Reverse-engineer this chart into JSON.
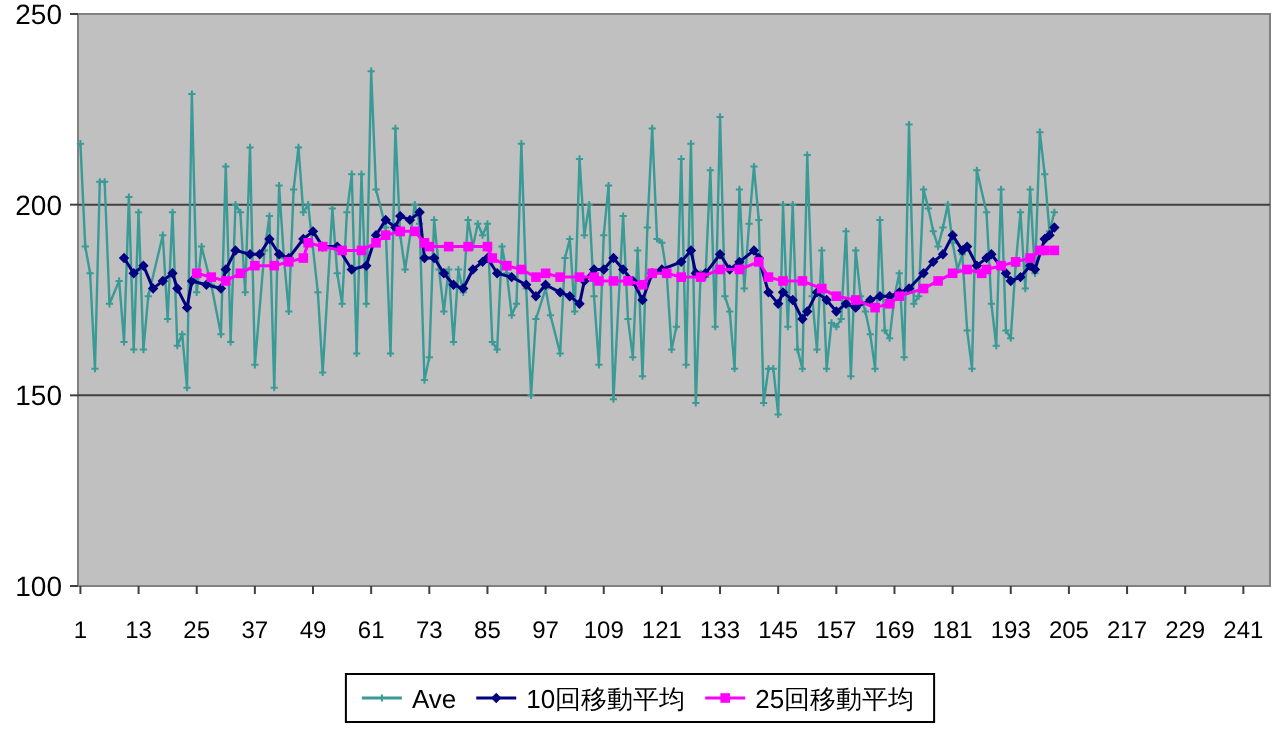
{
  "chart_data": {
    "type": "line",
    "xlim": [
      0.5,
      246.5
    ],
    "xticks": [
      1,
      13,
      25,
      37,
      49,
      61,
      73,
      85,
      97,
      109,
      121,
      133,
      145,
      157,
      169,
      181,
      193,
      205,
      217,
      229,
      241
    ],
    "ylim": [
      100,
      250
    ],
    "yticks": [
      100,
      150,
      200,
      250
    ],
    "grid": "y",
    "legend": "bottom",
    "series": [
      {
        "name": "Ave",
        "color": "#3a9a96",
        "marker": "cross",
        "x": [
          1,
          2,
          3,
          4,
          5,
          6,
          7,
          9,
          10,
          11,
          12,
          13,
          14,
          15,
          18,
          19,
          20,
          21,
          22,
          23,
          24,
          25,
          26,
          28,
          30,
          31,
          32,
          33,
          34,
          35,
          36,
          37,
          39,
          40,
          41,
          42,
          43,
          44,
          45,
          46,
          47,
          48,
          50,
          51,
          53,
          54,
          55,
          56,
          57,
          58,
          59,
          60,
          61,
          62,
          64,
          65,
          66,
          67,
          68,
          70,
          71,
          72,
          73,
          74,
          75,
          76,
          77,
          78,
          79,
          80,
          81,
          82,
          83,
          84,
          85,
          86,
          87,
          88,
          89,
          90,
          91,
          92,
          93,
          94,
          95,
          97,
          98,
          100,
          101,
          102,
          103,
          104,
          105,
          106,
          107,
          108,
          109,
          110,
          111,
          113,
          114,
          115,
          116,
          117,
          118,
          119,
          120,
          121,
          122,
          123,
          124,
          125,
          126,
          127,
          128,
          129,
          130,
          131,
          132,
          133,
          134,
          135,
          136,
          137,
          138,
          139,
          140,
          141,
          142,
          143,
          144,
          145,
          146,
          147,
          148,
          149,
          150,
          151,
          152,
          153,
          154,
          155,
          156,
          157,
          158,
          159,
          160,
          161,
          162,
          163,
          164,
          165,
          166,
          167,
          168,
          169,
          170,
          171,
          172,
          173,
          174,
          175,
          176,
          177,
          178,
          179,
          180,
          181,
          182,
          183,
          184,
          185,
          186,
          188,
          189,
          190,
          191,
          192,
          193,
          194,
          195,
          196,
          197,
          198,
          199,
          200,
          201,
          202
        ],
        "values": [
          216,
          189,
          182,
          157,
          206,
          206,
          174,
          180,
          164,
          202,
          162,
          198,
          162,
          176,
          192,
          170,
          198,
          163,
          166,
          152,
          229,
          177,
          189,
          179,
          166,
          210,
          164,
          200,
          198,
          177,
          215,
          158,
          188,
          197,
          152,
          205,
          186,
          172,
          204,
          215,
          198,
          200,
          177,
          156,
          199,
          182,
          174,
          198,
          208,
          161,
          208,
          174,
          235,
          204,
          194,
          161,
          220,
          192,
          183,
          200,
          195,
          154,
          160,
          196,
          183,
          172,
          183,
          164,
          183,
          177,
          196,
          189,
          195,
          192,
          195,
          164,
          162,
          189,
          182,
          171,
          174,
          216,
          178,
          150,
          170,
          178,
          171,
          161,
          186,
          191,
          172,
          212,
          192,
          200,
          176,
          158,
          192,
          205,
          149,
          197,
          170,
          160,
          188,
          155,
          194,
          220,
          191,
          190,
          182,
          162,
          168,
          212,
          158,
          216,
          148,
          182,
          181,
          209,
          168,
          223,
          176,
          172,
          157,
          204,
          178,
          195,
          210,
          196,
          148,
          157,
          157,
          145,
          200,
          168,
          200,
          162,
          157,
          213,
          176,
          162,
          188,
          157,
          169,
          168,
          170,
          193,
          155,
          188,
          176,
          172,
          166,
          157,
          196,
          167,
          165,
          176,
          182,
          160,
          221,
          174,
          176,
          204,
          199,
          193,
          189,
          194,
          200,
          190,
          183,
          187,
          167,
          157,
          209,
          198,
          174,
          163,
          204,
          167,
          165,
          184,
          198,
          178,
          204,
          182,
          219,
          208,
          193,
          198
        ]
      },
      {
        "name": "10回移動平均",
        "color": "#000080",
        "marker": "diamond",
        "x": [
          10,
          12,
          14,
          16,
          18,
          20,
          21,
          23,
          24,
          27,
          30,
          31,
          33,
          36,
          38,
          40,
          42,
          44,
          47,
          49,
          51,
          54,
          57,
          60,
          62,
          64,
          66,
          67,
          69,
          71,
          72,
          74,
          76,
          78,
          80,
          82,
          84,
          85,
          87,
          90,
          93,
          95,
          97,
          100,
          102,
          104,
          105,
          107,
          109,
          111,
          113,
          115,
          117,
          119,
          121,
          125,
          127,
          128,
          130,
          133,
          135,
          137,
          140,
          141,
          143,
          145,
          146,
          148,
          150,
          151,
          153,
          155,
          157,
          159,
          161,
          164,
          166,
          168,
          170,
          172,
          175,
          177,
          179,
          181,
          183,
          184,
          186,
          188,
          189,
          192,
          193,
          195,
          197,
          198,
          200,
          201,
          202
        ],
        "values": [
          186,
          182,
          184,
          178,
          180,
          182,
          178,
          173,
          180,
          179,
          178,
          183,
          188,
          187,
          187,
          191,
          187,
          186,
          191,
          193,
          189,
          189,
          183,
          184,
          192,
          196,
          194,
          197,
          196,
          198,
          186,
          186,
          182,
          179,
          178,
          183,
          185,
          186,
          182,
          181,
          179,
          176,
          179,
          177,
          176,
          174,
          180,
          183,
          183,
          186,
          183,
          180,
          175,
          182,
          183,
          185,
          188,
          182,
          182,
          187,
          183,
          185,
          188,
          186,
          177,
          174,
          177,
          175,
          170,
          172,
          177,
          175,
          172,
          174,
          173,
          175,
          176,
          176,
          177,
          178,
          182,
          185,
          187,
          192,
          188,
          189,
          184,
          186,
          187,
          182,
          180,
          181,
          184,
          183,
          191,
          192,
          194
        ]
      },
      {
        "name": "25回移動平均",
        "color": "#ff00ff",
        "marker": "square",
        "x": [
          25,
          28,
          31,
          34,
          37,
          41,
          44,
          47,
          48,
          51,
          55,
          59,
          62,
          64,
          67,
          70,
          72,
          73,
          77,
          81,
          85,
          86,
          89,
          92,
          95,
          97,
          100,
          104,
          107,
          108,
          111,
          114,
          117,
          119,
          122,
          125,
          129,
          133,
          137,
          141,
          143,
          146,
          150,
          154,
          157,
          161,
          165,
          168,
          170,
          175,
          178,
          181,
          184,
          187,
          188,
          191,
          194,
          197,
          199,
          200,
          202
        ],
        "values": [
          182,
          181,
          180,
          182,
          184,
          184,
          185,
          186,
          190,
          189,
          188,
          188,
          190,
          192,
          193,
          193,
          190,
          189,
          189,
          189,
          189,
          186,
          184,
          183,
          181,
          182,
          181,
          181,
          181,
          180,
          180,
          180,
          179,
          182,
          182,
          181,
          181,
          183,
          183,
          185,
          181,
          180,
          180,
          178,
          176,
          175,
          173,
          174,
          176,
          178,
          180,
          182,
          183,
          182,
          183,
          184,
          185,
          186,
          188,
          188,
          188
        ]
      }
    ]
  }
}
